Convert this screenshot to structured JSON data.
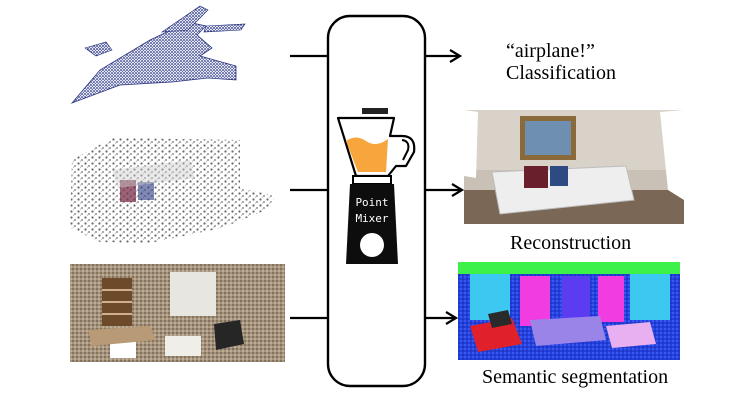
{
  "inputs": [
    {
      "id": "airplane",
      "color": "#1f2a78"
    },
    {
      "id": "sparse-room",
      "color": "#6b6b6b"
    },
    {
      "id": "office-room",
      "color": "#8a7a64"
    }
  ],
  "model": {
    "label_line1": "Point",
    "label_line2": "Mixer",
    "icon": "blender-icon",
    "juice_color": "#f6a63c"
  },
  "outputs": {
    "classification_quote": "“airplane!”",
    "classification": "Classification",
    "reconstruction": "Reconstruction",
    "segmentation": "Semantic segmentation"
  },
  "segmentation_colors": [
    "#3df04a",
    "#f03ce0",
    "#5b3cf0",
    "#3cc8f0",
    "#e0202a",
    "#9a84e8",
    "#2a5cf0"
  ]
}
